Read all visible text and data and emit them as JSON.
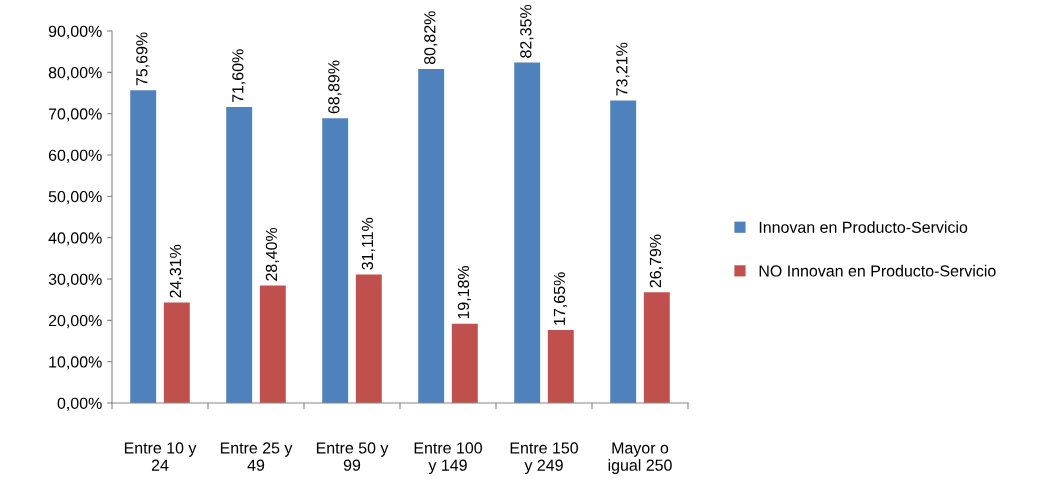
{
  "chart_data": {
    "type": "bar",
    "categories": [
      "Entre 10 y\n24",
      "Entre 25 y\n49",
      "Entre 50 y\n99",
      "Entre 100\ny 149",
      "Entre 150\ny 249",
      "Mayor o\nigual 250"
    ],
    "series": [
      {
        "name": "Innovan en Producto-Servicio",
        "color": "#4f81bd",
        "values": [
          75.69,
          71.6,
          68.89,
          80.82,
          82.35,
          73.21
        ],
        "value_labels": [
          "75,69%",
          "71,60%",
          "68,89%",
          "80,82%",
          "82,35%",
          "73,21%"
        ]
      },
      {
        "name": "NO Innovan en Producto-Servicio",
        "color": "#c0504d",
        "values": [
          24.31,
          28.4,
          31.11,
          19.18,
          17.65,
          26.79
        ],
        "value_labels": [
          "24,31%",
          "28,40%",
          "31,11%",
          "19,18%",
          "17,65%",
          "26,79%"
        ]
      }
    ],
    "ylim": [
      0,
      90
    ],
    "yticks": [
      {
        "value": 0,
        "label": "0,00%"
      },
      {
        "value": 10,
        "label": "10,00%"
      },
      {
        "value": 20,
        "label": "20,00%"
      },
      {
        "value": 30,
        "label": "30,00%"
      },
      {
        "value": 40,
        "label": "40,00%"
      },
      {
        "value": 50,
        "label": "50,00%"
      },
      {
        "value": 60,
        "label": "60,00%"
      },
      {
        "value": 70,
        "label": "70,00%"
      },
      {
        "value": 80,
        "label": "80,00%"
      },
      {
        "value": 90,
        "label": "90,00%"
      }
    ],
    "legend": "right",
    "grid": false
  }
}
